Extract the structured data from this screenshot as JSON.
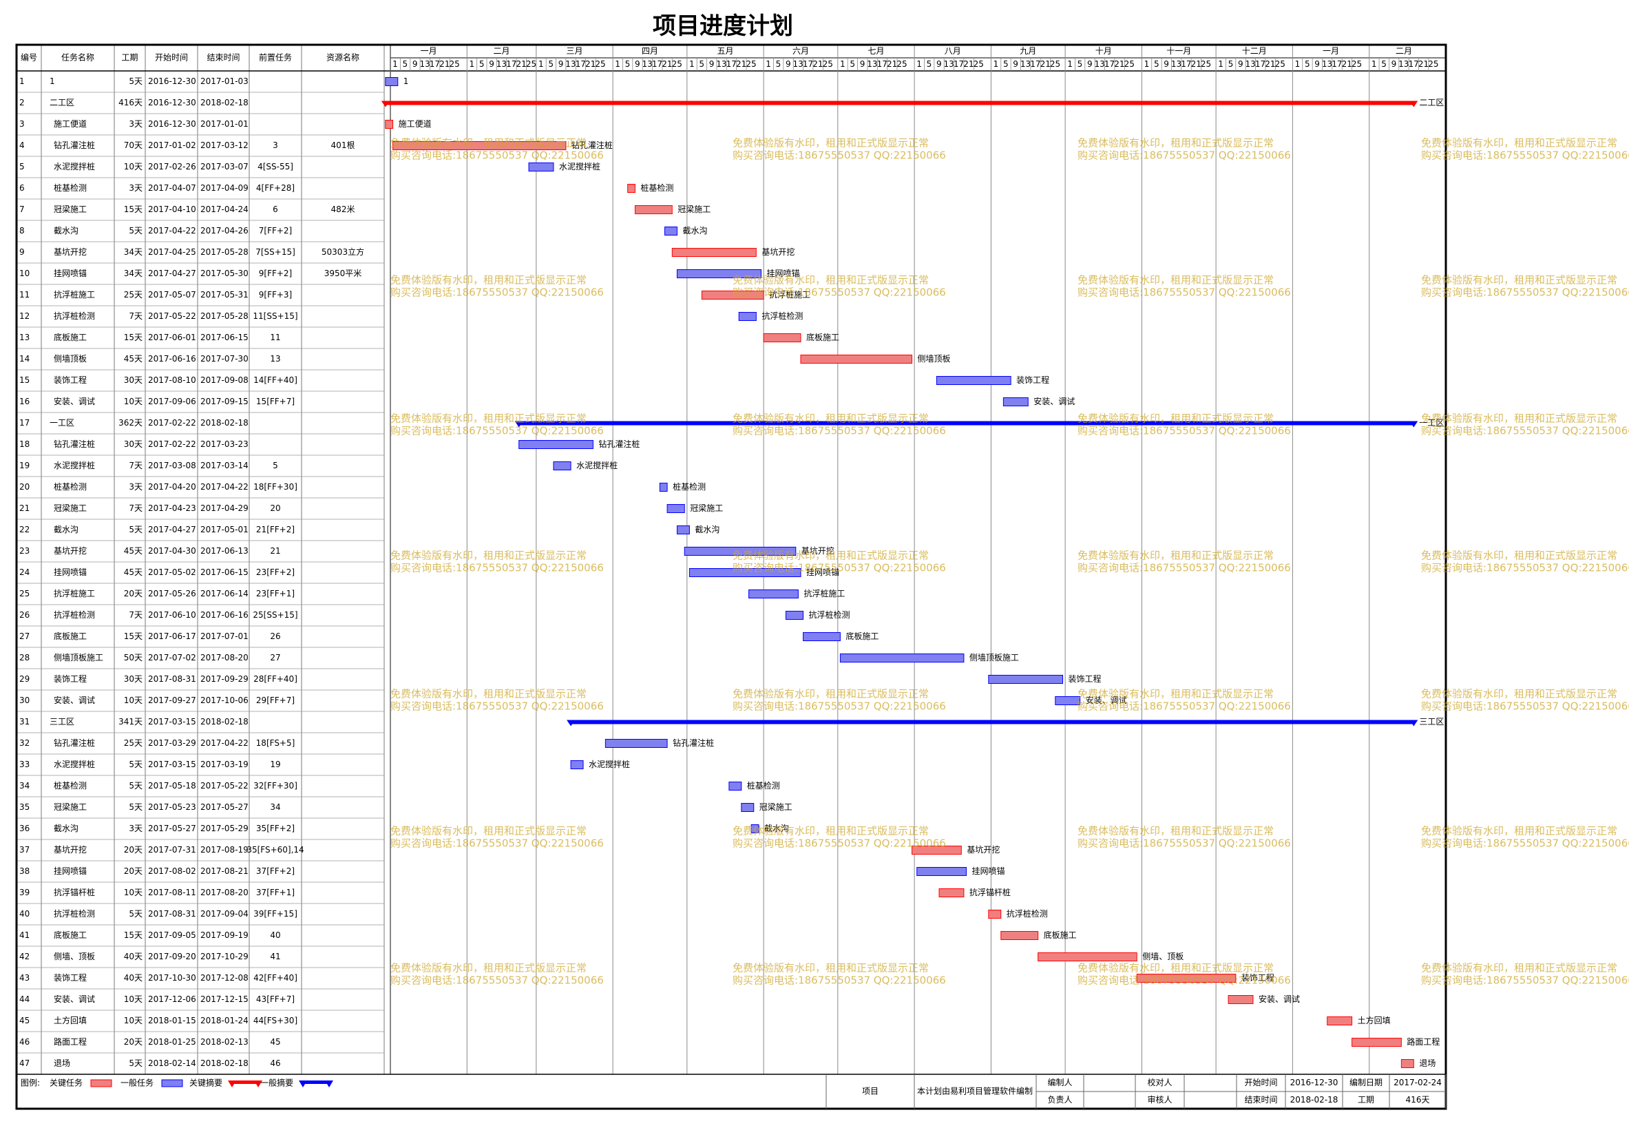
{
  "header": {
    "title": "项目进度计划"
  },
  "table": {
    "columns": [
      "编号",
      "任务名称",
      "工期",
      "开始时间",
      "结束时间",
      "前置任务",
      "资源名称"
    ],
    "rows": [
      {
        "cells": [
          "1",
          "1",
          "5天",
          "2016-12-30",
          "2017-01-03",
          "",
          ""
        ],
        "critical": false,
        "summary": false
      },
      {
        "cells": [
          "2",
          "二工区",
          "416天",
          "2016-12-30",
          "2018-02-18",
          "",
          ""
        ],
        "critical": true,
        "summary": true
      },
      {
        "cells": [
          "3",
          "施工便道",
          "3天",
          "2016-12-30",
          "2017-01-01",
          "",
          ""
        ],
        "critical": true,
        "summary": false
      },
      {
        "cells": [
          "4",
          "钻孔灌注桩",
          "70天",
          "2017-01-02",
          "2017-03-12",
          "3",
          "401根"
        ],
        "critical": true,
        "summary": false
      },
      {
        "cells": [
          "5",
          "水泥搅拌桩",
          "10天",
          "2017-02-26",
          "2017-03-07",
          "4[SS-55]",
          ""
        ],
        "critical": false,
        "summary": false
      },
      {
        "cells": [
          "6",
          "桩基检测",
          "3天",
          "2017-04-07",
          "2017-04-09",
          "4[FF+28]",
          ""
        ],
        "critical": true,
        "summary": false
      },
      {
        "cells": [
          "7",
          "冠梁施工",
          "15天",
          "2017-04-10",
          "2017-04-24",
          "6",
          "482米"
        ],
        "critical": true,
        "summary": false
      },
      {
        "cells": [
          "8",
          "截水沟",
          "5天",
          "2017-04-22",
          "2017-04-26",
          "7[FF+2]",
          ""
        ],
        "critical": false,
        "summary": false
      },
      {
        "cells": [
          "9",
          "基坑开挖",
          "34天",
          "2017-04-25",
          "2017-05-28",
          "7[SS+15]",
          "50303立方"
        ],
        "critical": true,
        "summary": false
      },
      {
        "cells": [
          "10",
          "挂网喷锚",
          "34天",
          "2017-04-27",
          "2017-05-30",
          "9[FF+2]",
          "3950平米"
        ],
        "critical": false,
        "summary": false
      },
      {
        "cells": [
          "11",
          "抗浮桩施工",
          "25天",
          "2017-05-07",
          "2017-05-31",
          "9[FF+3]",
          ""
        ],
        "critical": true,
        "summary": false
      },
      {
        "cells": [
          "12",
          "抗浮桩检测",
          "7天",
          "2017-05-22",
          "2017-05-28",
          "11[SS+15]",
          ""
        ],
        "critical": false,
        "summary": false
      },
      {
        "cells": [
          "13",
          "底板施工",
          "15天",
          "2017-06-01",
          "2017-06-15",
          "11",
          ""
        ],
        "critical": true,
        "summary": false
      },
      {
        "cells": [
          "14",
          "侧墙顶板",
          "45天",
          "2017-06-16",
          "2017-07-30",
          "13",
          ""
        ],
        "critical": true,
        "summary": false
      },
      {
        "cells": [
          "15",
          "装饰工程",
          "30天",
          "2017-08-10",
          "2017-09-08",
          "14[FF+40]",
          ""
        ],
        "critical": false,
        "summary": false
      },
      {
        "cells": [
          "16",
          "安装、调试",
          "10天",
          "2017-09-06",
          "2017-09-15",
          "15[FF+7]",
          ""
        ],
        "critical": false,
        "summary": false
      },
      {
        "cells": [
          "17",
          "一工区",
          "362天",
          "2017-02-22",
          "2018-02-18",
          "",
          ""
        ],
        "critical": false,
        "summary": true
      },
      {
        "cells": [
          "18",
          "钻孔灌注桩",
          "30天",
          "2017-02-22",
          "2017-03-23",
          "",
          ""
        ],
        "critical": false,
        "summary": false
      },
      {
        "cells": [
          "19",
          "水泥搅拌桩",
          "7天",
          "2017-03-08",
          "2017-03-14",
          "5",
          ""
        ],
        "critical": false,
        "summary": false
      },
      {
        "cells": [
          "20",
          "桩基检测",
          "3天",
          "2017-04-20",
          "2017-04-22",
          "18[FF+30]",
          ""
        ],
        "critical": false,
        "summary": false
      },
      {
        "cells": [
          "21",
          "冠梁施工",
          "7天",
          "2017-04-23",
          "2017-04-29",
          "20",
          ""
        ],
        "critical": false,
        "summary": false
      },
      {
        "cells": [
          "22",
          "截水沟",
          "5天",
          "2017-04-27",
          "2017-05-01",
          "21[FF+2]",
          ""
        ],
        "critical": false,
        "summary": false
      },
      {
        "cells": [
          "23",
          "基坑开挖",
          "45天",
          "2017-04-30",
          "2017-06-13",
          "21",
          ""
        ],
        "critical": false,
        "summary": false
      },
      {
        "cells": [
          "24",
          "挂网喷锚",
          "45天",
          "2017-05-02",
          "2017-06-15",
          "23[FF+2]",
          ""
        ],
        "critical": false,
        "summary": false
      },
      {
        "cells": [
          "25",
          "抗浮桩施工",
          "20天",
          "2017-05-26",
          "2017-06-14",
          "23[FF+1]",
          ""
        ],
        "critical": false,
        "summary": false
      },
      {
        "cells": [
          "26",
          "抗浮桩检测",
          "7天",
          "2017-06-10",
          "2017-06-16",
          "25[SS+15]",
          ""
        ],
        "critical": false,
        "summary": false
      },
      {
        "cells": [
          "27",
          "底板施工",
          "15天",
          "2017-06-17",
          "2017-07-01",
          "26",
          ""
        ],
        "critical": false,
        "summary": false
      },
      {
        "cells": [
          "28",
          "侧墙顶板施工",
          "50天",
          "2017-07-02",
          "2017-08-20",
          "27",
          ""
        ],
        "critical": false,
        "summary": false
      },
      {
        "cells": [
          "29",
          "装饰工程",
          "30天",
          "2017-08-31",
          "2017-09-29",
          "28[FF+40]",
          ""
        ],
        "critical": false,
        "summary": false
      },
      {
        "cells": [
          "30",
          "安装、调试",
          "10天",
          "2017-09-27",
          "2017-10-06",
          "29[FF+7]",
          ""
        ],
        "critical": false,
        "summary": false
      },
      {
        "cells": [
          "31",
          "三工区",
          "341天",
          "2017-03-15",
          "2018-02-18",
          "",
          ""
        ],
        "critical": false,
        "summary": true
      },
      {
        "cells": [
          "32",
          "钻孔灌注桩",
          "25天",
          "2017-03-29",
          "2017-04-22",
          "18[FS+5]",
          ""
        ],
        "critical": false,
        "summary": false
      },
      {
        "cells": [
          "33",
          "水泥搅拌桩",
          "5天",
          "2017-03-15",
          "2017-03-19",
          "19",
          ""
        ],
        "critical": false,
        "summary": false
      },
      {
        "cells": [
          "34",
          "桩基检测",
          "5天",
          "2017-05-18",
          "2017-05-22",
          "32[FF+30]",
          ""
        ],
        "critical": false,
        "summary": false
      },
      {
        "cells": [
          "35",
          "冠梁施工",
          "5天",
          "2017-05-23",
          "2017-05-27",
          "34",
          ""
        ],
        "critical": false,
        "summary": false
      },
      {
        "cells": [
          "36",
          "截水沟",
          "3天",
          "2017-05-27",
          "2017-05-29",
          "35[FF+2]",
          ""
        ],
        "critical": false,
        "summary": false
      },
      {
        "cells": [
          "37",
          "基坑开挖",
          "20天",
          "2017-07-31",
          "2017-08-19",
          "35[FS+60],14",
          ""
        ],
        "critical": true,
        "summary": false
      },
      {
        "cells": [
          "38",
          "挂网喷锚",
          "20天",
          "2017-08-02",
          "2017-08-21",
          "37[FF+2]",
          ""
        ],
        "critical": false,
        "summary": false
      },
      {
        "cells": [
          "39",
          "抗浮锚杆桩",
          "10天",
          "2017-08-11",
          "2017-08-20",
          "37[FF+1]",
          ""
        ],
        "critical": true,
        "summary": false
      },
      {
        "cells": [
          "40",
          "抗浮桩检测",
          "5天",
          "2017-08-31",
          "2017-09-04",
          "39[FF+15]",
          ""
        ],
        "critical": true,
        "summary": false
      },
      {
        "cells": [
          "41",
          "底板施工",
          "15天",
          "2017-09-05",
          "2017-09-19",
          "40",
          ""
        ],
        "critical": true,
        "summary": false
      },
      {
        "cells": [
          "42",
          "侧墙、顶板",
          "40天",
          "2017-09-20",
          "2017-10-29",
          "41",
          ""
        ],
        "critical": true,
        "summary": false
      },
      {
        "cells": [
          "43",
          "装饰工程",
          "40天",
          "2017-10-30",
          "2017-12-08",
          "42[FF+40]",
          ""
        ],
        "critical": true,
        "summary": false
      },
      {
        "cells": [
          "44",
          "安装、调试",
          "10天",
          "2017-12-06",
          "2017-12-15",
          "43[FF+7]",
          ""
        ],
        "critical": true,
        "summary": false
      },
      {
        "cells": [
          "45",
          "土方回填",
          "10天",
          "2018-01-15",
          "2018-01-24",
          "44[FS+30]",
          ""
        ],
        "critical": true,
        "summary": false
      },
      {
        "cells": [
          "46",
          "路面工程",
          "20天",
          "2018-01-25",
          "2018-02-13",
          "45",
          ""
        ],
        "critical": true,
        "summary": false
      },
      {
        "cells": [
          "47",
          "退场",
          "5天",
          "2018-02-14",
          "2018-02-18",
          "46",
          ""
        ],
        "critical": true,
        "summary": false
      }
    ]
  },
  "timeline": {
    "months": [
      "一月",
      "二月",
      "三月",
      "四月",
      "五月",
      "六月",
      "七月",
      "八月",
      "九月",
      "十月",
      "十一月",
      "十二月",
      "一月",
      "二月"
    ],
    "day_ticks": [
      1,
      5,
      9,
      13,
      17,
      21,
      25
    ]
  },
  "colors": {
    "critical": "#ff0000",
    "normal": "#0000ff",
    "critical_fill": "#f08080",
    "normal_fill": "#8080f0"
  },
  "watermark": [
    "免费体验版有水印，租用和正式版显示正常",
    "购买咨询电话:18675550537 QQ:22150066"
  ],
  "legend": {
    "label": "图例:",
    "items": [
      "关键任务",
      "一般任务",
      "关键摘要",
      "一般摘要"
    ]
  },
  "footer": {
    "project_label": "项目",
    "note": "本计划由易利项目管理软件编制",
    "compiler_label": "编制人",
    "checker_label": "校对人",
    "start_label": "开始时间",
    "start": "2016-12-30",
    "date_label": "编制日期",
    "date": "2017-02-24",
    "owner_label": "负责人",
    "reviewer_label": "审核人",
    "end_label": "结束时间",
    "end": "2018-02-18",
    "duration_label": "工期",
    "duration": "416天"
  }
}
